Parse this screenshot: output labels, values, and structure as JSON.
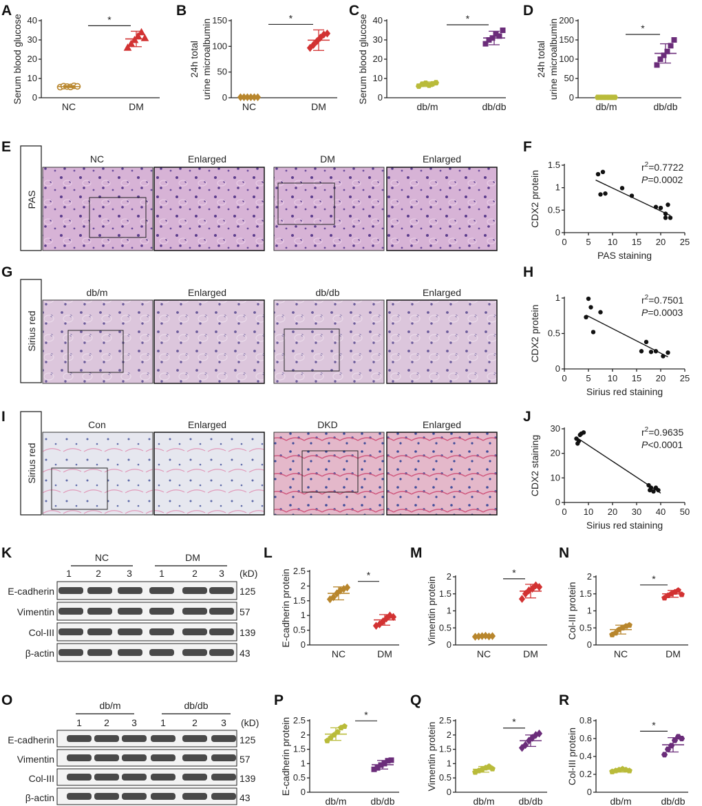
{
  "figure": {
    "panels": [
      "A",
      "B",
      "C",
      "D",
      "E",
      "F",
      "G",
      "H",
      "I",
      "J",
      "K",
      "L",
      "M",
      "N",
      "O",
      "P",
      "Q",
      "R"
    ]
  },
  "sig_marker": "*",
  "colors": {
    "nc": "#b8862d",
    "dm": "#d23232",
    "dbm": "#b9bb3a",
    "dbdb": "#6b2d7a",
    "kidney_pas": "#c89bc8",
    "kidney_sr": "#d6b8d4",
    "kidney_human": "#dfe0ea",
    "blot": "#2a2a2a"
  },
  "chart_data": [
    {
      "panel": "A",
      "type": "scatter",
      "ylabel": "Serum blood glucose",
      "categories": [
        "NC",
        "DM"
      ],
      "ylim": [
        0,
        40
      ],
      "yticks": [
        0,
        10,
        20,
        30,
        40
      ],
      "groups": [
        {
          "values": [
            5.5,
            6,
            5.8,
            5.6,
            6.2,
            5.9
          ],
          "mean": 5.8,
          "sd": 0.5,
          "color": "nc",
          "marker": "circle"
        },
        {
          "values": [
            26,
            28,
            30,
            32,
            34,
            31
          ],
          "mean": 30.5,
          "sd": 4,
          "color": "dm",
          "marker": "triangle"
        }
      ]
    },
    {
      "panel": "B",
      "type": "scatter",
      "ylabel": [
        "24h total",
        "urine microalbumin"
      ],
      "categories": [
        "NC",
        "DM"
      ],
      "ylim": [
        0,
        150
      ],
      "yticks": [
        0,
        50,
        100,
        150
      ],
      "groups": [
        {
          "values": [
            1,
            1,
            1,
            1,
            1,
            1
          ],
          "mean": 1,
          "sd": 0.4,
          "color": "nc",
          "marker": "diamond"
        },
        {
          "values": [
            97,
            103,
            110,
            117,
            123,
            125
          ],
          "mean": 112,
          "sd": 20,
          "color": "dm",
          "marker": "diamond"
        }
      ]
    },
    {
      "panel": "C",
      "type": "scatter",
      "ylabel": "Serum blood glucose",
      "categories": [
        "db/m",
        "db/db"
      ],
      "ylim": [
        0,
        40
      ],
      "yticks": [
        0,
        10,
        20,
        30,
        40
      ],
      "groups": [
        {
          "values": [
            6,
            7,
            7.5,
            6.5,
            7.2,
            7.8
          ],
          "mean": 7,
          "sd": 1.2,
          "color": "dbm",
          "marker": "hexagon"
        },
        {
          "values": [
            28,
            30,
            31,
            33,
            32,
            35
          ],
          "mean": 31,
          "sd": 3.5,
          "color": "dbdb",
          "marker": "square"
        }
      ]
    },
    {
      "panel": "D",
      "type": "scatter",
      "ylabel": [
        "24h total",
        "urine microalbumin"
      ],
      "categories": [
        "db/m",
        "db/db"
      ],
      "ylim": [
        0,
        200
      ],
      "yticks": [
        0,
        50,
        100,
        150,
        200
      ],
      "groups": [
        {
          "values": [
            1,
            1,
            1,
            1,
            1,
            1
          ],
          "mean": 1,
          "sd": 0.4,
          "color": "dbm",
          "marker": "hexagon"
        },
        {
          "values": [
            85,
            100,
            110,
            120,
            135,
            150
          ],
          "mean": 115,
          "sd": 25,
          "color": "dbdb",
          "marker": "square"
        }
      ]
    },
    {
      "panel": "F",
      "type": "scatter",
      "xlabel": "PAS staining",
      "ylabel": "CDX2 protein",
      "xlim": [
        0,
        25
      ],
      "ylim": [
        0,
        1.5
      ],
      "xticks": [
        0,
        5,
        10,
        15,
        20,
        25
      ],
      "yticks": [
        0,
        0.5,
        1.0,
        1.5
      ],
      "points": [
        [
          7,
          1.3
        ],
        [
          7.5,
          0.85
        ],
        [
          8,
          1.35
        ],
        [
          8.5,
          0.87
        ],
        [
          12,
          0.99
        ],
        [
          14,
          0.82
        ],
        [
          19,
          0.57
        ],
        [
          20,
          0.55
        ],
        [
          21,
          0.42
        ],
        [
          21,
          0.33
        ],
        [
          21.5,
          0.62
        ],
        [
          22,
          0.33
        ]
      ],
      "fit": [
        [
          6.5,
          1.17
        ],
        [
          22,
          0.38
        ]
      ],
      "r2": "0.7722",
      "p": "0.0002"
    },
    {
      "panel": "H",
      "type": "scatter",
      "xlabel": "Sirius red staining",
      "ylabel": "CDX2 protein",
      "xlim": [
        0,
        25
      ],
      "ylim": [
        0,
        1.0
      ],
      "xticks": [
        0,
        5,
        10,
        15,
        20,
        25
      ],
      "yticks": [
        0,
        0.5,
        1.0
      ],
      "points": [
        [
          4.5,
          0.73
        ],
        [
          5,
          0.99
        ],
        [
          5.5,
          0.87
        ],
        [
          6,
          0.52
        ],
        [
          7.5,
          0.8
        ],
        [
          16,
          0.25
        ],
        [
          17,
          0.38
        ],
        [
          18,
          0.24
        ],
        [
          19,
          0.25
        ],
        [
          20.5,
          0.18
        ],
        [
          21.5,
          0.23
        ]
      ],
      "fit": [
        [
          4.5,
          0.76
        ],
        [
          21.5,
          0.17
        ]
      ],
      "r2": "0.7501",
      "p": "0.0003"
    },
    {
      "panel": "J",
      "type": "scatter",
      "xlabel": "Sirius red staining",
      "ylabel": "CDX2 staining",
      "xlim": [
        0,
        50
      ],
      "ylim": [
        0,
        30
      ],
      "xticks": [
        0,
        10,
        20,
        30,
        40,
        50
      ],
      "yticks": [
        0,
        10,
        20,
        30
      ],
      "points": [
        [
          5,
          26
        ],
        [
          5.5,
          24
        ],
        [
          6,
          25
        ],
        [
          6.5,
          27.5
        ],
        [
          7,
          28
        ],
        [
          8,
          28.5
        ],
        [
          35,
          7
        ],
        [
          35.5,
          5
        ],
        [
          36,
          6
        ],
        [
          37,
          4.5
        ],
        [
          38,
          6
        ],
        [
          39,
          5
        ]
      ],
      "fit": [
        [
          5,
          26.5
        ],
        [
          40,
          3.8
        ]
      ],
      "r2": "0.9635",
      "p": "<0.0001"
    },
    {
      "panel": "L",
      "type": "scatter",
      "ylabel": "E-cadherin protein",
      "categories": [
        "NC",
        "DM"
      ],
      "ylim": [
        0,
        2.5
      ],
      "yticks": [
        0,
        0.5,
        1.0,
        1.5,
        2.0,
        2.5
      ],
      "groups": [
        {
          "values": [
            1.55,
            1.62,
            1.75,
            1.85,
            1.9,
            1.95
          ],
          "mean": 1.75,
          "sd": 0.22,
          "color": "nc",
          "marker": "diamond"
        },
        {
          "values": [
            0.65,
            0.7,
            0.8,
            0.9,
            1.0,
            0.95
          ],
          "mean": 0.85,
          "sd": 0.18,
          "color": "dm",
          "marker": "diamond"
        }
      ]
    },
    {
      "panel": "M",
      "type": "scatter",
      "ylabel": "Vimentin protein",
      "categories": [
        "NC",
        "DM"
      ],
      "ylim": [
        0,
        2.0
      ],
      "yticks": [
        0,
        0.5,
        1.0,
        1.5,
        2.0
      ],
      "groups": [
        {
          "values": [
            0.24,
            0.25,
            0.26,
            0.27,
            0.25,
            0.26
          ],
          "mean": 0.25,
          "sd": 0.03,
          "color": "nc",
          "marker": "diamond"
        },
        {
          "values": [
            1.35,
            1.5,
            1.6,
            1.65,
            1.75,
            1.7
          ],
          "mean": 1.58,
          "sd": 0.2,
          "color": "dm",
          "marker": "diamond"
        }
      ]
    },
    {
      "panel": "N",
      "type": "scatter",
      "ylabel": "Col-III protein",
      "categories": [
        "NC",
        "DM"
      ],
      "ylim": [
        0,
        2.0
      ],
      "yticks": [
        0,
        0.5,
        1.0,
        1.5,
        2.0
      ],
      "groups": [
        {
          "values": [
            0.3,
            0.35,
            0.45,
            0.5,
            0.55,
            0.58
          ],
          "mean": 0.45,
          "sd": 0.13,
          "color": "nc",
          "marker": "pentagon"
        },
        {
          "values": [
            1.38,
            1.45,
            1.5,
            1.55,
            1.6,
            1.48
          ],
          "mean": 1.5,
          "sd": 0.1,
          "color": "dm",
          "marker": "pentagon"
        }
      ]
    },
    {
      "panel": "P",
      "type": "scatter",
      "ylabel": "E-cadherin protein",
      "categories": [
        "db/m",
        "db/db"
      ],
      "ylim": [
        0,
        2.5
      ],
      "yticks": [
        0,
        0.5,
        1.0,
        1.5,
        2.0,
        2.5
      ],
      "groups": [
        {
          "values": [
            1.8,
            1.9,
            2.0,
            2.1,
            2.25,
            2.3
          ],
          "mean": 2.03,
          "sd": 0.22,
          "color": "dbm",
          "marker": "pentagon"
        },
        {
          "values": [
            0.8,
            0.85,
            0.95,
            1.0,
            1.1,
            1.12
          ],
          "mean": 0.96,
          "sd": 0.15,
          "color": "dbdb",
          "marker": "square"
        }
      ]
    },
    {
      "panel": "Q",
      "type": "scatter",
      "ylabel": "Vimentin protein",
      "categories": [
        "db/m",
        "db/db"
      ],
      "ylim": [
        0,
        2.5
      ],
      "yticks": [
        0,
        0.5,
        1.0,
        1.5,
        2.0,
        2.5
      ],
      "groups": [
        {
          "values": [
            0.7,
            0.75,
            0.8,
            0.85,
            0.9,
            0.82
          ],
          "mean": 0.8,
          "sd": 0.1,
          "color": "dbm",
          "marker": "pentagon"
        },
        {
          "values": [
            1.55,
            1.65,
            1.8,
            1.9,
            2.0,
            2.05
          ],
          "mean": 1.8,
          "sd": 0.2,
          "color": "dbdb",
          "marker": "diamond"
        }
      ]
    },
    {
      "panel": "R",
      "type": "scatter",
      "ylabel": "Col-III protein",
      "categories": [
        "db/m",
        "db/db"
      ],
      "ylim": [
        0,
        0.8
      ],
      "yticks": [
        0,
        0.2,
        0.4,
        0.6,
        0.8
      ],
      "groups": [
        {
          "values": [
            0.23,
            0.24,
            0.25,
            0.26,
            0.25,
            0.24
          ],
          "mean": 0.245,
          "sd": 0.02,
          "color": "dbm",
          "marker": "pentagon"
        },
        {
          "values": [
            0.42,
            0.48,
            0.52,
            0.58,
            0.62,
            0.6
          ],
          "mean": 0.53,
          "sd": 0.08,
          "color": "dbdb",
          "marker": "hexagon"
        }
      ]
    }
  ],
  "histology": {
    "E": {
      "side": "PAS",
      "titles": [
        "NC",
        "Enlarged",
        "DM",
        "Enlarged"
      ]
    },
    "G": {
      "side": "Sirius red",
      "titles": [
        "db/m",
        "Enlarged",
        "db/db",
        "Enlarged"
      ]
    },
    "I": {
      "side": "Sirius red",
      "titles": [
        "Con",
        "Enlarged",
        "DKD",
        "Enlarged"
      ]
    }
  },
  "western": {
    "K": {
      "groups": [
        "NC",
        "DM"
      ],
      "lanes": [
        "1",
        "2",
        "3",
        "1",
        "2",
        "3"
      ],
      "unit": "(kD)",
      "rows": [
        {
          "name": "E-cadherin",
          "kd": "125"
        },
        {
          "name": "Vimentin",
          "kd": "57"
        },
        {
          "name": "Col-III",
          "kd": "139"
        },
        {
          "name": "β-actin",
          "kd": "43"
        }
      ]
    },
    "O": {
      "groups": [
        "db/m",
        "db/db"
      ],
      "lanes": [
        "1",
        "2",
        "3",
        "1",
        "2",
        "3"
      ],
      "unit": "(kD)",
      "rows": [
        {
          "name": "E-cadherin",
          "kd": "125"
        },
        {
          "name": "Vimentin",
          "kd": "57"
        },
        {
          "name": "Col-III",
          "kd": "139"
        },
        {
          "name": "β-actin",
          "kd": "43"
        }
      ]
    }
  }
}
